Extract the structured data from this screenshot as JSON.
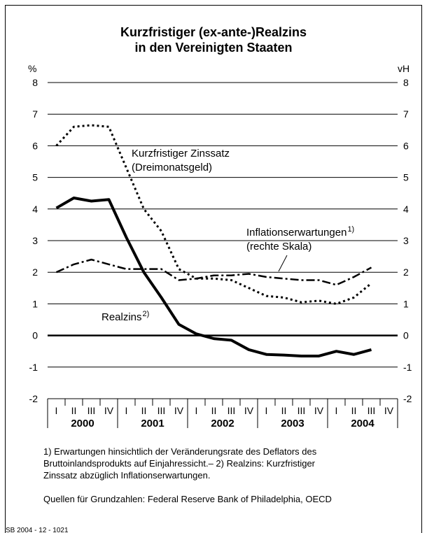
{
  "chart_data": {
    "type": "line",
    "title": [
      "Kurzfristiger (ex-ante-)Realzins",
      "in den Vereinigten Staaten"
    ],
    "y_axis_label": "%",
    "y2_axis_label": "vH",
    "categories": [
      "I",
      "II",
      "III",
      "IV",
      "I",
      "II",
      "III",
      "IV",
      "I",
      "II",
      "III",
      "IV",
      "I",
      "II",
      "III",
      "IV",
      "I",
      "II",
      "III",
      "IV"
    ],
    "years": [
      "2000",
      "2001",
      "2002",
      "2003",
      "2004"
    ],
    "ylim": [
      -2,
      8
    ],
    "yticks": [
      -2,
      -1,
      0,
      1,
      2,
      3,
      4,
      5,
      6,
      7,
      8
    ],
    "y2lim": [
      -2,
      8
    ],
    "y2ticks": [
      -2,
      -1,
      0,
      1,
      2,
      3,
      4,
      5,
      6,
      7,
      8
    ],
    "grid": true,
    "series": [
      {
        "color": "#000000",
        "style": "dotted",
        "values": [
          6.0,
          6.6,
          6.65,
          6.6,
          5.3,
          4.0,
          3.3,
          2.1,
          1.8,
          1.8,
          1.75,
          1.5,
          1.25,
          1.2,
          1.05,
          1.1,
          1.0,
          1.2,
          1.65,
          null
        ]
      },
      {
        "color": "#000000",
        "style": "dashdot",
        "axis": "y2",
        "values": [
          2.0,
          2.25,
          2.4,
          2.25,
          2.1,
          2.1,
          2.1,
          1.75,
          1.8,
          1.9,
          1.9,
          1.95,
          1.85,
          1.8,
          1.75,
          1.75,
          1.6,
          1.85,
          2.15,
          null
        ]
      },
      {
        "color": "#000000",
        "style": "solid",
        "values": [
          4.03,
          4.35,
          4.25,
          4.3,
          3.1,
          2.0,
          1.2,
          0.35,
          0.05,
          -0.1,
          -0.15,
          -0.45,
          -0.6,
          -0.62,
          -0.65,
          -0.65,
          -0.5,
          -0.6,
          -0.45,
          null
        ]
      }
    ],
    "annotations": [
      {
        "lines": [
          "Kurzfristiger Zinssatz",
          "(Dreimonatsgeld)"
        ]
      },
      {
        "lines": [
          "Inflationserwartungen",
          "(rechte Skala)"
        ],
        "sup": "1)"
      },
      {
        "lines": [
          "Realzins"
        ],
        "sup": "2)"
      }
    ],
    "footnotes": [
      "1) Erwartungen hinsichtlich der Veränderungsrate des Deflators des",
      "Bruttoinlandsprodukts auf Einjahressicht.– 2) Realzins: Kurzfristiger",
      "Zinssatz abzüglich Inflationserwartungen."
    ],
    "source": "Quellen für Grundzahlen: Federal Reserve Bank of Philadelphia, OECD",
    "code": "SB 2004 - 12 - 1021"
  }
}
